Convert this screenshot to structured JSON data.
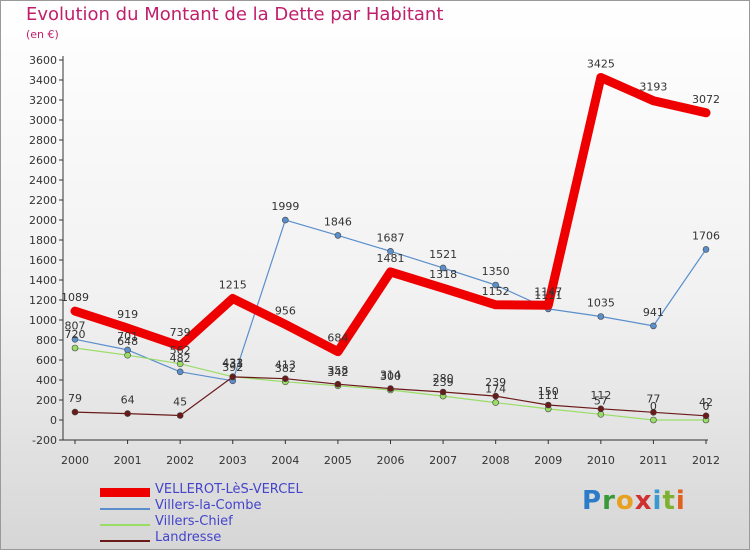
{
  "title": "Evolution du Montant de la Dette par Habitant",
  "subtitle": "(en €)",
  "logo": "Proxiti",
  "chart_data": {
    "type": "line",
    "x": [
      "2000",
      "2001",
      "2002",
      "2003",
      "2004",
      "2005",
      "2006",
      "2007",
      "2008",
      "2009",
      "2010",
      "2011",
      "2012"
    ],
    "y_ticks": [
      -200,
      0,
      200,
      400,
      600,
      800,
      1000,
      1200,
      1400,
      1600,
      1800,
      2000,
      2200,
      2400,
      2600,
      2800,
      3000,
      3200,
      3400,
      3600
    ],
    "ylim": [
      -200,
      3600
    ],
    "grid": false,
    "legend_position": "bottom-left",
    "series": [
      {
        "name": "VELLEROT-LèS-VERCEL",
        "color": "#ee0000",
        "width": 9,
        "marker": false,
        "z": 4,
        "values": [
          1089,
          919,
          739,
          1215,
          956,
          684,
          1481,
          1318,
          1152,
          1147,
          3425,
          3193,
          3072
        ],
        "labels": [
          "1089",
          "919",
          "739",
          "1215",
          "956",
          "684",
          "1481",
          "1318",
          "1152",
          "1147",
          "3425",
          "3193",
          "3072"
        ]
      },
      {
        "name": "Villers-la-Combe",
        "color": "#5a8fcc",
        "width": 1.2,
        "marker": true,
        "z": 1,
        "values": [
          807,
          701,
          482,
          392,
          1999,
          1846,
          1687,
          1521,
          1350,
          1111,
          1035,
          941,
          1706
        ],
        "labels": [
          "807",
          "701",
          "482",
          "392",
          "1999",
          "1846",
          "1687",
          "1521",
          "1350",
          "1111",
          "1035",
          "941",
          "1706"
        ]
      },
      {
        "name": "Villers-Chief",
        "color": "#99dd66",
        "width": 1.2,
        "marker": true,
        "z": 2,
        "values": [
          720,
          648,
          562,
          433,
          382,
          342,
          300,
          239,
          174,
          111,
          57,
          0,
          0
        ],
        "labels": [
          "720",
          "648",
          "562",
          "433",
          "382",
          "342",
          "300",
          "239",
          "174",
          "111",
          "57",
          "0",
          "0"
        ]
      },
      {
        "name": "Landresse",
        "color": "#6b1a1a",
        "width": 1.2,
        "marker": true,
        "z": 3,
        "values": [
          79,
          64,
          45,
          431,
          413,
          358,
          314,
          280,
          239,
          150,
          112,
          77,
          42
        ],
        "labels": [
          "79",
          "64",
          "45",
          "431",
          "413",
          "358",
          "314",
          "280",
          "239",
          "150",
          "112",
          "77",
          "42"
        ]
      }
    ]
  }
}
